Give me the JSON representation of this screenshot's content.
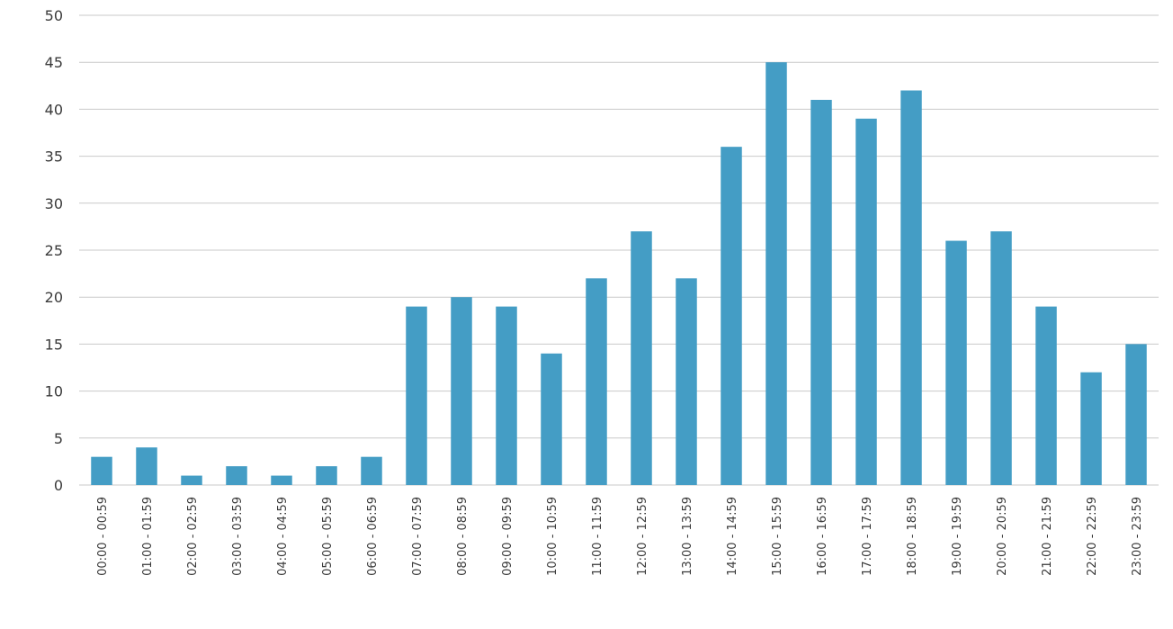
{
  "chart_data": {
    "type": "bar",
    "title": "",
    "xlabel": "",
    "ylabel": "",
    "ylim": [
      0,
      50
    ],
    "yticks": [
      0,
      5,
      10,
      15,
      20,
      25,
      30,
      35,
      40,
      45,
      50
    ],
    "grid": true,
    "legend": "none",
    "bar_color": "#449dc5",
    "categories": [
      "00:00 - 00:59",
      "01:00 - 01:59",
      "02:00 - 02:59",
      "03:00 - 03:59",
      "04:00 - 04:59",
      "05:00 - 05:59",
      "06:00 - 06:59",
      "07:00 - 07:59",
      "08:00 - 08:59",
      "09:00 - 09:59",
      "10:00 - 10:59",
      "11:00 - 11:59",
      "12:00 - 12:59",
      "13:00 - 13:59",
      "14:00 - 14:59",
      "15:00 - 15:59",
      "16:00 - 16:59",
      "17:00 - 17:59",
      "18:00 - 18:59",
      "19:00 - 19:59",
      "20:00 - 20:59",
      "21:00 - 21:59",
      "22:00 - 22:59",
      "23:00 - 23:59"
    ],
    "values": [
      3,
      4,
      1,
      2,
      1,
      2,
      3,
      19,
      20,
      19,
      14,
      22,
      27,
      22,
      36,
      45,
      41,
      39,
      42,
      26,
      27,
      19,
      12,
      15
    ]
  }
}
